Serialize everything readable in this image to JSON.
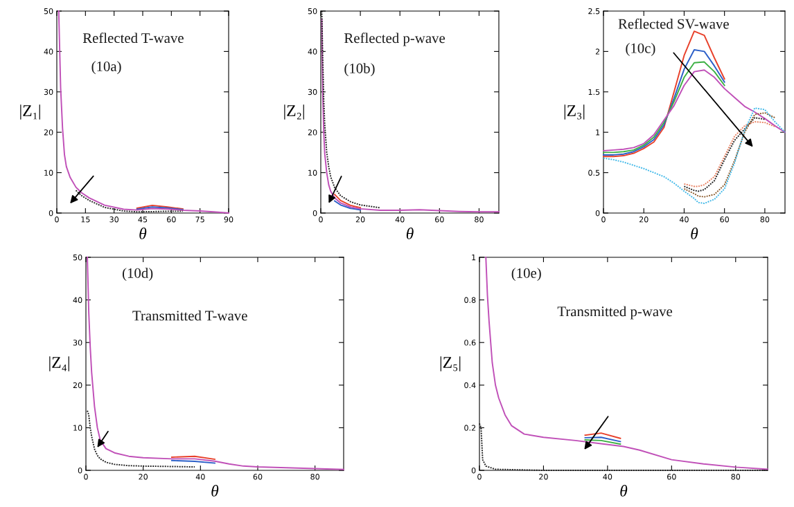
{
  "chart_data": [
    {
      "type": "line",
      "xlabel": "θ",
      "ylabel": "|Z₁|",
      "annotations": [
        "Reflected T-wave",
        "(10a)"
      ],
      "xlim": [
        0,
        90
      ],
      "xticks": [
        0,
        15,
        30,
        45,
        60,
        75,
        90
      ],
      "ylim": [
        0,
        50
      ],
      "yticks": [
        0,
        10,
        20,
        30,
        40,
        50
      ],
      "series": [
        {
          "color": "#e8402a",
          "line_style": "solid",
          "x": [
            42,
            50,
            58,
            66
          ],
          "values": [
            1.2,
            1.9,
            1.5,
            1.0
          ]
        },
        {
          "color": "#2b5fc8",
          "line_style": "solid",
          "x": [
            42,
            50,
            58,
            66
          ],
          "values": [
            0.95,
            1.5,
            1.25,
            0.85
          ]
        },
        {
          "color": "#c050b8",
          "line_style": "solid",
          "x": [
            1,
            2,
            3,
            4,
            5,
            7,
            10,
            13,
            17,
            25,
            35,
            42,
            50,
            58,
            66,
            75,
            82,
            90
          ],
          "values": [
            50,
            31,
            21,
            14.5,
            11.5,
            8.8,
            6.4,
            5,
            3.75,
            1.95,
            0.95,
            0.75,
            1.1,
            1.0,
            0.7,
            0.5,
            0.3,
            0
          ]
        },
        {
          "color": "#222222",
          "line_style": "dotted",
          "x": [
            10,
            13,
            17,
            25,
            35,
            42,
            50,
            58,
            66
          ],
          "values": [
            5.6,
            4.3,
            3.1,
            1.4,
            0.5,
            0.3,
            0.35,
            0.45,
            0.45
          ]
        }
      ]
    },
    {
      "type": "line",
      "xlabel": "θ",
      "ylabel": "|Z₂|",
      "annotations": [
        "Reflected p-wave",
        "(10b)"
      ],
      "xlim": [
        0,
        90
      ],
      "xticks": [
        0,
        20,
        40,
        60,
        80
      ],
      "ylim": [
        0,
        50
      ],
      "yticks": [
        0,
        10,
        20,
        30,
        40,
        50
      ],
      "series": [
        {
          "color": "#e8402a",
          "line_style": "solid",
          "x": [
            7,
            10,
            15,
            20
          ],
          "values": [
            4.6,
            3.1,
            1.9,
            1.35
          ]
        },
        {
          "color": "#2b5fc8",
          "line_style": "solid",
          "x": [
            7,
            10,
            15,
            20
          ],
          "values": [
            3.0,
            2.0,
            1.15,
            0.8
          ]
        },
        {
          "color": "#c050b8",
          "line_style": "solid",
          "x": [
            0.5,
            1,
            1.5,
            2,
            3,
            4,
            5,
            7,
            10,
            15,
            20,
            30,
            40,
            50,
            60,
            70,
            80,
            90
          ],
          "values": [
            48,
            29.5,
            20,
            14.7,
            10,
            7,
            5.4,
            3.75,
            2.5,
            1.5,
            1.05,
            0.7,
            0.7,
            0.8,
            0.6,
            0.4,
            0.3,
            0.3
          ]
        },
        {
          "color": "#222222",
          "line_style": "dotted",
          "x": [
            0.5,
            1,
            1.5,
            2,
            3,
            4,
            5,
            7,
            10,
            15,
            20,
            30
          ],
          "values": [
            50,
            38,
            28,
            22,
            15,
            11.5,
            9,
            6.3,
            4.3,
            2.8,
            2,
            1.3
          ]
        }
      ]
    },
    {
      "type": "line",
      "xlabel": "θ",
      "ylabel": "|Z₃|",
      "annotations": [
        "Reflected SV-wave",
        "(10c)"
      ],
      "xlim": [
        0,
        90
      ],
      "xticks": [
        0,
        20,
        40,
        60,
        80
      ],
      "ylim": [
        0,
        2.5
      ],
      "yticks": [
        0,
        0.5,
        1,
        1.5,
        2,
        2.5
      ],
      "series": [
        {
          "color": "#e8402a",
          "line_style": "solid",
          "x": [
            0,
            5,
            10,
            15,
            20,
            25,
            30,
            35,
            40,
            45,
            50,
            55,
            60
          ],
          "values": [
            0.7,
            0.7,
            0.71,
            0.74,
            0.8,
            0.88,
            1.06,
            1.5,
            1.95,
            2.25,
            2.2,
            1.92,
            1.66
          ]
        },
        {
          "color": "#2b5fc8",
          "line_style": "solid",
          "x": [
            0,
            5,
            10,
            15,
            20,
            25,
            30,
            35,
            40,
            45,
            50,
            55,
            60
          ],
          "values": [
            0.72,
            0.72,
            0.73,
            0.76,
            0.82,
            0.91,
            1.09,
            1.42,
            1.78,
            2.02,
            2.0,
            1.82,
            1.62
          ]
        },
        {
          "color": "#3cb043",
          "line_style": "solid",
          "x": [
            0,
            5,
            10,
            15,
            20,
            25,
            30,
            35,
            40,
            45,
            50,
            55,
            60
          ],
          "values": [
            0.75,
            0.75,
            0.76,
            0.78,
            0.84,
            0.94,
            1.12,
            1.38,
            1.68,
            1.86,
            1.87,
            1.75,
            1.58
          ]
        },
        {
          "color": "#c050b8",
          "line_style": "solid",
          "x": [
            0,
            5,
            10,
            15,
            20,
            25,
            30,
            35,
            40,
            45,
            50,
            55,
            60,
            65,
            70,
            75,
            80,
            85,
            90
          ],
          "values": [
            0.77,
            0.78,
            0.79,
            0.81,
            0.86,
            0.97,
            1.15,
            1.33,
            1.58,
            1.75,
            1.77,
            1.68,
            1.54,
            1.43,
            1.32,
            1.25,
            1.17,
            1.08,
            1.0
          ]
        },
        {
          "color": "#e88060",
          "line_style": "dotted",
          "x": [
            40,
            45,
            47,
            50,
            55,
            60,
            65,
            70,
            75,
            80,
            85
          ],
          "values": [
            0.36,
            0.33,
            0.33,
            0.35,
            0.45,
            0.7,
            0.95,
            1.08,
            1.13,
            1.12,
            1.07
          ]
        },
        {
          "color": "#222222",
          "line_style": "dotted",
          "x": [
            40,
            45,
            47,
            50,
            55,
            60,
            65,
            70,
            75,
            80
          ],
          "values": [
            0.33,
            0.28,
            0.27,
            0.29,
            0.4,
            0.66,
            0.9,
            1.04,
            1.18,
            1.16
          ]
        },
        {
          "color": "#8b5a2b",
          "line_style": "dotted",
          "x": [
            40,
            45,
            47,
            50,
            55,
            60,
            65,
            70,
            75,
            80,
            85
          ],
          "values": [
            0.3,
            0.24,
            0.21,
            0.2,
            0.23,
            0.35,
            0.65,
            1.0,
            1.22,
            1.24,
            1.18
          ]
        },
        {
          "color": "#40b8e8",
          "line_style": "dotted",
          "x": [
            0,
            5,
            10,
            15,
            20,
            25,
            30,
            35,
            40,
            45,
            47,
            50,
            55,
            60,
            65,
            70,
            75,
            80,
            85,
            90
          ],
          "values": [
            0.68,
            0.66,
            0.63,
            0.59,
            0.55,
            0.5,
            0.45,
            0.37,
            0.27,
            0.18,
            0.13,
            0.12,
            0.17,
            0.3,
            0.62,
            1.02,
            1.3,
            1.28,
            1.13,
            1.0
          ]
        }
      ]
    },
    {
      "type": "line",
      "xlabel": "θ",
      "ylabel": "|Z₄|",
      "annotations": [
        "(10d)",
        "Transmitted T-wave"
      ],
      "xlim": [
        0,
        90
      ],
      "xticks": [
        0,
        20,
        40,
        60,
        80
      ],
      "ylim": [
        0,
        50
      ],
      "yticks": [
        0,
        10,
        20,
        30,
        40,
        50
      ],
      "series": [
        {
          "color": "#e8402a",
          "line_style": "solid",
          "x": [
            30,
            38,
            45
          ],
          "values": [
            3.1,
            3.3,
            2.6
          ]
        },
        {
          "color": "#2b5fc8",
          "line_style": "solid",
          "x": [
            30,
            38,
            45
          ],
          "values": [
            2.3,
            2.1,
            1.7
          ]
        },
        {
          "color": "#c050b8",
          "line_style": "solid",
          "x": [
            0.5,
            1,
            1.5,
            2,
            3,
            4,
            5,
            7,
            10,
            15,
            20,
            30,
            38,
            45,
            50,
            55,
            60,
            70,
            80,
            90
          ],
          "values": [
            50,
            37,
            29,
            23,
            15,
            10,
            7.1,
            5.1,
            4.1,
            3.3,
            2.95,
            2.7,
            2.7,
            2.15,
            1.5,
            1.0,
            0.8,
            0.6,
            0.4,
            0.2
          ]
        },
        {
          "color": "#222222",
          "line_style": "dotted",
          "x": [
            0.5,
            1,
            1.5,
            2,
            3,
            4,
            5,
            7,
            10,
            15,
            20,
            30,
            38
          ],
          "values": [
            14,
            13,
            10,
            8,
            5,
            3.5,
            2.7,
            1.9,
            1.4,
            1.1,
            1,
            0.9,
            0.8
          ]
        }
      ]
    },
    {
      "type": "line",
      "xlabel": "θ",
      "ylabel": "|Z₅|",
      "annotations": [
        "(10e)",
        "Transmitted p-wave"
      ],
      "xlim": [
        0,
        90
      ],
      "xticks": [
        0,
        20,
        40,
        60,
        80
      ],
      "ylim": [
        0,
        1
      ],
      "yticks": [
        0,
        0.2,
        0.4,
        0.6,
        0.8,
        1
      ],
      "series": [
        {
          "color": "#e8402a",
          "line_style": "solid",
          "x": [
            33,
            38,
            44
          ],
          "values": [
            0.165,
            0.175,
            0.15
          ]
        },
        {
          "color": "#2b5fc8",
          "line_style": "solid",
          "x": [
            33,
            38,
            44
          ],
          "values": [
            0.153,
            0.155,
            0.135
          ]
        },
        {
          "color": "#3cb043",
          "line_style": "solid",
          "x": [
            33,
            38,
            44
          ],
          "values": [
            0.143,
            0.14,
            0.123
          ]
        },
        {
          "color": "#c050b8",
          "line_style": "solid",
          "x": [
            2,
            2.5,
            3,
            4,
            5,
            6,
            8,
            10,
            14,
            20,
            30,
            38,
            45,
            50,
            60,
            70,
            80,
            90
          ],
          "values": [
            1.0,
            0.82,
            0.7,
            0.505,
            0.4,
            0.34,
            0.26,
            0.21,
            0.17,
            0.155,
            0.14,
            0.125,
            0.112,
            0.095,
            0.05,
            0.03,
            0.015,
            0.005
          ]
        },
        {
          "color": "#222222",
          "line_style": "dotted",
          "x": [
            0,
            0.5,
            1,
            2,
            5,
            20,
            50,
            90
          ],
          "values": [
            0.22,
            0.2,
            0.05,
            0.02,
            0.005,
            0,
            0,
            0
          ]
        }
      ]
    }
  ]
}
